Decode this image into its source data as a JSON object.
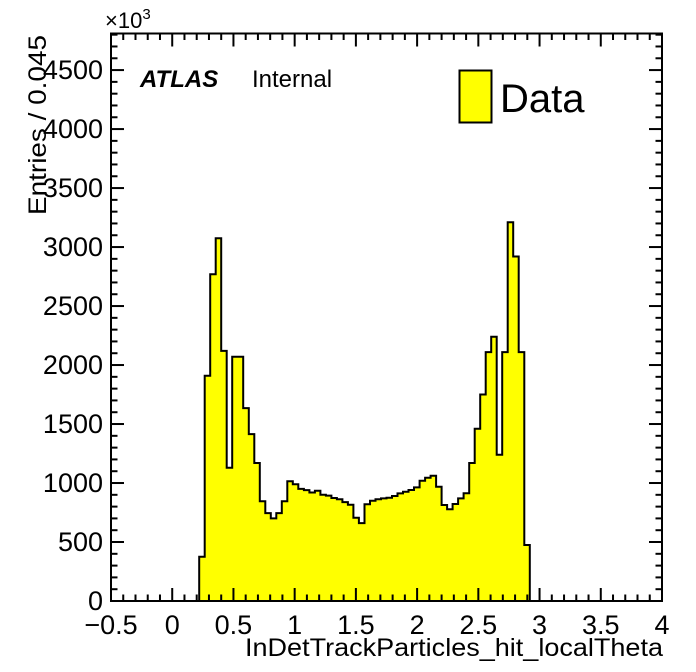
{
  "chart_data": {
    "type": "bar",
    "subtype": "root-histogram",
    "title": "",
    "xlabel": "InDetTrackParticles_hit_localTheta",
    "ylabel": "Entries / 0.045",
    "y_axis_multiplier": "×10³",
    "values_unit": "10^3 entries",
    "xlim": [
      -0.5,
      4
    ],
    "ylim": [
      0,
      4810
    ],
    "grid": false,
    "bin_width": 0.045,
    "first_bin_left_edge": 0.22,
    "last_bin_right_edge": 2.92,
    "values": [
      375,
      1910,
      2770,
      3075,
      2120,
      1130,
      2070,
      2070,
      1635,
      1415,
      1170,
      845,
      745,
      700,
      745,
      845,
      1015,
      990,
      950,
      940,
      920,
      935,
      900,
      893,
      873,
      862,
      838,
      815,
      706,
      660,
      820,
      850,
      862,
      870,
      875,
      890,
      912,
      926,
      941,
      963,
      1020,
      1045,
      1062,
      969,
      814,
      777,
      822,
      870,
      913,
      1170,
      1460,
      1750,
      2110,
      2240,
      1240,
      2110,
      3210,
      2920,
      2110,
      475
    ],
    "x_major_ticks": [
      -0.5,
      0,
      0.5,
      1,
      1.5,
      2,
      2.5,
      3,
      3.5,
      4
    ],
    "x_tick_labels": [
      "−0.5",
      "0",
      "0.5",
      "1",
      "1.5",
      "2",
      "2.5",
      "3",
      "3.5",
      "4"
    ],
    "x_minor_step": 0.1,
    "y_major_ticks": [
      0,
      500,
      1000,
      1500,
      2000,
      2500,
      3000,
      3500,
      4000,
      4500
    ],
    "y_tick_labels": [
      "0",
      "500",
      "1000",
      "1500",
      "2000",
      "2500",
      "3000",
      "3500",
      "4000",
      "4500"
    ],
    "y_minor_step": 100,
    "fill_color": "#ffff00",
    "line_color": "#000000",
    "legend": {
      "label": "Data",
      "position": "top-right",
      "swatch_fill": "#ffff00",
      "swatch_border": "#000000"
    }
  },
  "annotations": {
    "experiment": "ATLAS",
    "status": "Internal"
  },
  "axis_multiplier": {
    "base": "×10",
    "exp": "3"
  }
}
